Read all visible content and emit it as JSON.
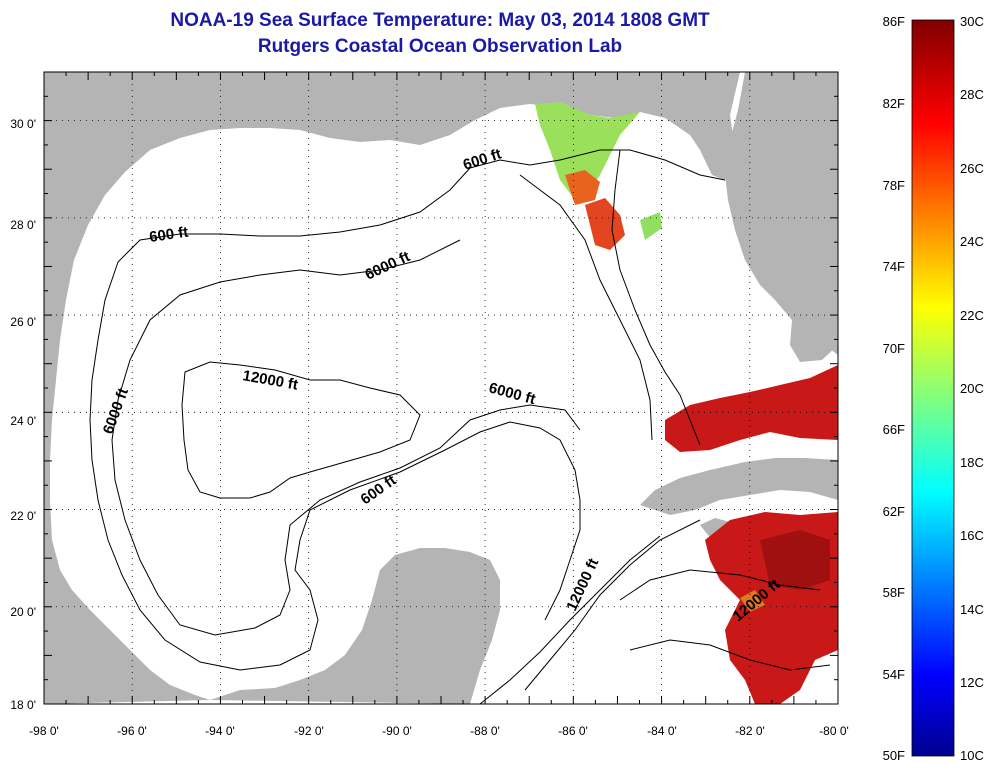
{
  "title": {
    "line1": "NOAA-19 Sea Surface Temperature:  May 03, 2014 1808 GMT",
    "line2": "Rutgers Coastal Ocean Observation Lab"
  },
  "map": {
    "lon_range": [
      -98,
      -80
    ],
    "lat_range": [
      18,
      31
    ],
    "x_ticks": [
      "-98 0'",
      "-96 0'",
      "-94 0'",
      "-92 0'",
      "-90 0'",
      "-88 0'",
      "-86 0'",
      "-84 0'",
      "-82 0'",
      "-80 0'"
    ],
    "y_ticks": [
      "30 0'",
      "28 0'",
      "26 0'",
      "24 0'",
      "22 0'",
      "20 0'",
      "18 0'"
    ],
    "grid": "dotted",
    "land_color": "#b4b4b4",
    "contour_labels": [
      "600 ft",
      "6000 ft",
      "600 ft",
      "12000 ft",
      "6000 ft",
      "6000 ft",
      "600 ft",
      "12000 ft",
      "12000 ft"
    ]
  },
  "colorbar": {
    "fahrenheit_labels": [
      "86F",
      "82F",
      "78F",
      "74F",
      "70F",
      "66F",
      "62F",
      "58F",
      "54F",
      "50F"
    ],
    "celsius_labels": [
      "30C",
      "28C",
      "26C",
      "24C",
      "22C",
      "20C",
      "18C",
      "16C",
      "14C",
      "12C",
      "10C"
    ],
    "range_c": [
      10,
      30
    ],
    "colormap": "jet"
  }
}
